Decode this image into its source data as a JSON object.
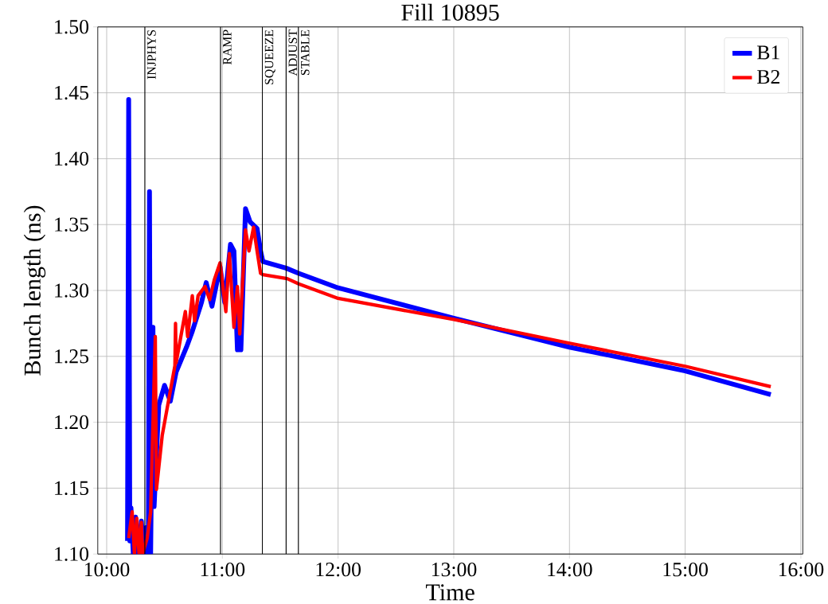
{
  "chart_data": {
    "type": "line",
    "title": "Fill 10895",
    "xlabel": "Time",
    "ylabel": "Bunch length (ns)",
    "xlim": [
      9.923,
      16.017
    ],
    "ylim": [
      1.1,
      1.5
    ],
    "xticks": [
      {
        "value": 10,
        "label": "10:00"
      },
      {
        "value": 11,
        "label": "11:00"
      },
      {
        "value": 12,
        "label": "12:00"
      },
      {
        "value": 13,
        "label": "13:00"
      },
      {
        "value": 14,
        "label": "14:00"
      },
      {
        "value": 15,
        "label": "15:00"
      },
      {
        "value": 16,
        "label": "16:00"
      }
    ],
    "yticks": [
      {
        "value": 1.1,
        "label": "1.10"
      },
      {
        "value": 1.15,
        "label": "1.15"
      },
      {
        "value": 1.2,
        "label": "1.20"
      },
      {
        "value": 1.25,
        "label": "1.25"
      },
      {
        "value": 1.3,
        "label": "1.30"
      },
      {
        "value": 1.35,
        "label": "1.35"
      },
      {
        "value": 1.4,
        "label": "1.40"
      },
      {
        "value": 1.45,
        "label": "1.45"
      },
      {
        "value": 1.5,
        "label": "1.50"
      }
    ],
    "grid": true,
    "legend": "top right",
    "marker": "none",
    "line_style": "solid",
    "ref_lines": [
      {
        "axis": "x",
        "value": 10.33,
        "label": "INJPHYS",
        "color": "#000000"
      },
      {
        "axis": "x",
        "value": 10.984,
        "label": "RAMP",
        "color": "#000000"
      },
      {
        "axis": "x",
        "value": 11.346,
        "label": "SQUEEZE",
        "color": "#000000"
      },
      {
        "axis": "x",
        "value": 11.551,
        "label": "ADJUST",
        "color": "#000000"
      },
      {
        "axis": "x",
        "value": 11.657,
        "label": "STABLE",
        "color": "#000000"
      }
    ],
    "series": [
      {
        "name": "B1",
        "color": "#0000ff",
        "x": [
          10.18,
          10.19,
          10.2,
          10.21,
          10.23,
          10.25,
          10.27,
          10.3,
          10.32,
          10.34,
          10.36,
          10.37,
          10.38,
          10.4,
          10.41,
          10.45,
          10.5,
          10.55,
          10.6,
          10.69,
          10.74,
          10.82,
          10.86,
          10.91,
          10.98,
          11.02,
          11.07,
          11.1,
          11.13,
          11.16,
          11.2,
          11.24,
          11.3,
          11.33,
          11.35,
          11.55,
          11.66,
          12.0,
          13.0,
          14.0,
          15.0,
          15.74
        ],
        "values": [
          1.11,
          1.445,
          1.11,
          1.135,
          1.1,
          1.128,
          1.1,
          1.125,
          1.1,
          1.12,
          1.1,
          1.375,
          1.1,
          1.272,
          1.136,
          1.213,
          1.228,
          1.216,
          1.238,
          1.257,
          1.269,
          1.291,
          1.306,
          1.288,
          1.318,
          1.291,
          1.335,
          1.33,
          1.255,
          1.255,
          1.362,
          1.352,
          1.347,
          1.33,
          1.322,
          1.317,
          1.313,
          1.302,
          1.279,
          1.257,
          1.239,
          1.221
        ]
      },
      {
        "name": "B2",
        "color": "#ff0000",
        "x": [
          10.19,
          10.22,
          10.24,
          10.26,
          10.28,
          10.3,
          10.31,
          10.35,
          10.38,
          10.42,
          10.43,
          10.48,
          10.59,
          10.595,
          10.6,
          10.68,
          10.7,
          10.74,
          10.76,
          10.79,
          10.85,
          10.89,
          10.93,
          10.98,
          11.03,
          11.06,
          11.1,
          11.13,
          11.15,
          11.2,
          11.23,
          11.27,
          11.3,
          11.33,
          11.35,
          11.56,
          11.66,
          12.0,
          13.0,
          14.0,
          15.0,
          15.74
        ],
        "values": [
          1.112,
          1.132,
          1.1,
          1.127,
          1.1,
          1.124,
          1.1,
          1.112,
          1.132,
          1.265,
          1.149,
          1.19,
          1.243,
          1.275,
          1.245,
          1.284,
          1.265,
          1.296,
          1.277,
          1.296,
          1.303,
          1.293,
          1.308,
          1.321,
          1.284,
          1.328,
          1.272,
          1.303,
          1.267,
          1.346,
          1.33,
          1.348,
          1.33,
          1.313,
          1.312,
          1.309,
          1.305,
          1.294,
          1.278,
          1.26,
          1.2425,
          1.227
        ]
      }
    ]
  }
}
